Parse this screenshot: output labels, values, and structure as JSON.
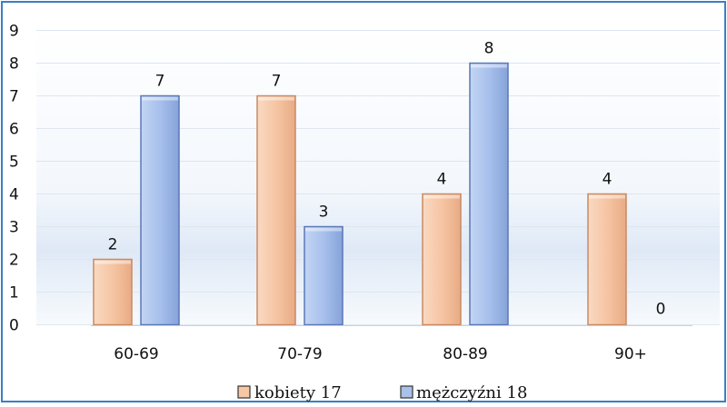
{
  "chart_data": {
    "type": "bar",
    "categories": [
      "60-69",
      "70-79",
      "80-89",
      "90+"
    ],
    "series": [
      {
        "name": "kobiety 17",
        "values": [
          2,
          7,
          4,
          4
        ],
        "color": "#f6c8a6",
        "edge": "#c98a62"
      },
      {
        "name": "mężczyźni 18",
        "values": [
          7,
          3,
          8,
          0
        ],
        "color": "#a9c1ea",
        "edge": "#5a78b8"
      }
    ],
    "ylim": [
      0,
      9
    ],
    "yticks": [
      "0",
      "1",
      "2",
      "3",
      "4",
      "5",
      "6",
      "7",
      "8",
      "9"
    ],
    "data_labels": true,
    "legend_position": "bottom-center",
    "border_color": "#3b7fc4"
  }
}
